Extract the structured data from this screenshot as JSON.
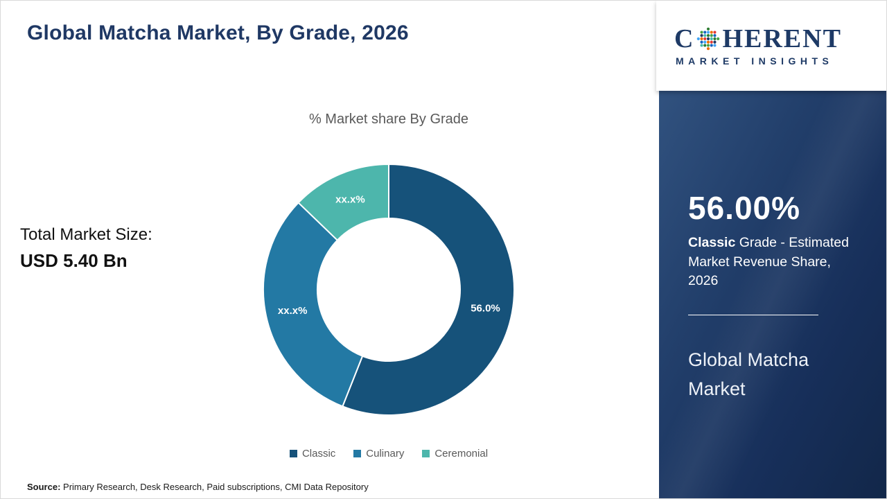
{
  "header": {
    "title": "Global Matcha Market, By Grade, 2026"
  },
  "chart_data": {
    "type": "pie",
    "donut": true,
    "title": "% Market share By Grade",
    "categories": [
      "Classic",
      "Culinary",
      "Ceremonial"
    ],
    "values": [
      56.0,
      31.2,
      12.8
    ],
    "segments": [
      {
        "label": "Classic",
        "display": "56.0%",
        "value": 56.0,
        "color": "#16527a",
        "masked": false
      },
      {
        "label": "Culinary",
        "display": "xx.x%",
        "value": 31.2,
        "color": "#2379a4",
        "masked": true
      },
      {
        "label": "Ceremonial",
        "display": "xx.x%",
        "value": 12.8,
        "color": "#4db6ac",
        "masked": true
      }
    ],
    "legend_position": "bottom",
    "start_angle_deg": 0,
    "direction": "clockwise"
  },
  "total_market": {
    "label": "Total Market Size:",
    "value": "USD 5.40 Bn"
  },
  "footer": {
    "source_label": "Source:",
    "source_text": " Primary Research, Desk Research, Paid subscriptions, CMI Data Repository"
  },
  "side_panel": {
    "logo": {
      "brand_c": "C",
      "brand_rest": "HERENT",
      "subtitle": "MARKET INSIGHTS",
      "dot_colors": [
        "#2e7d32",
        "#43a047",
        "#1565c0",
        "#42a5f5",
        "#ef6c00",
        "#e53935",
        "#1f3864",
        "#45b8ac"
      ]
    },
    "highlight_value": "56.00%",
    "highlight_bold": "Classic",
    "highlight_rest": " Grade - Estimated Market Revenue Share, 2026",
    "market_name": "Global Matcha Market",
    "panel_color": "#1d3a66",
    "accent_text_color": "#ffffff"
  }
}
